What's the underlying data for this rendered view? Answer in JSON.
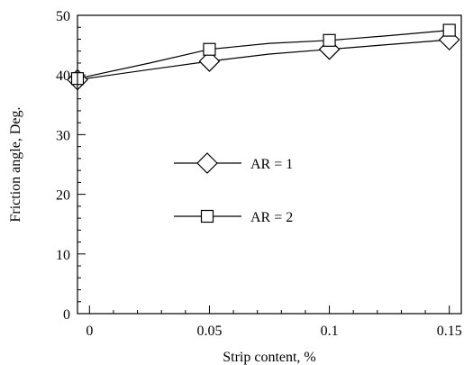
{
  "chart_data": {
    "type": "line",
    "title": "",
    "xlabel": "Strip content, %",
    "ylabel": "Friction angle, Deg.",
    "xlim": [
      -0.005,
      0.155
    ],
    "ylim": [
      0,
      50
    ],
    "x_ticks": [
      0,
      0.05,
      0.1,
      0.15
    ],
    "x_tick_labels": [
      "0",
      "0.05",
      "0.1",
      "0.15"
    ],
    "y_ticks": [
      0,
      10,
      20,
      30,
      40,
      50
    ],
    "y_tick_labels": [
      "0",
      "10",
      "20",
      "30",
      "40",
      "50"
    ],
    "grid": false,
    "legend_position": "center",
    "series": [
      {
        "name": "AR = 1",
        "marker": "diamond",
        "x": [
          -0.005,
          0.05,
          0.1,
          0.15
        ],
        "y": [
          39.2,
          42.3,
          44.3,
          45.9
        ],
        "curve": [
          [
            -0.005,
            39.2
          ],
          [
            0.025,
            40.9
          ],
          [
            0.05,
            42.3
          ],
          [
            0.075,
            43.5
          ],
          [
            0.1,
            44.3
          ],
          [
            0.125,
            45.1
          ],
          [
            0.15,
            45.9
          ]
        ]
      },
      {
        "name": "AR = 2",
        "marker": "square",
        "x": [
          -0.005,
          0.05,
          0.1,
          0.15
        ],
        "y": [
          39.4,
          44.3,
          45.8,
          47.5
        ],
        "curve": [
          [
            -0.005,
            39.4
          ],
          [
            0.025,
            42.0
          ],
          [
            0.05,
            44.3
          ],
          [
            0.075,
            45.3
          ],
          [
            0.1,
            45.8
          ],
          [
            0.125,
            46.6
          ],
          [
            0.15,
            47.5
          ]
        ]
      }
    ]
  }
}
